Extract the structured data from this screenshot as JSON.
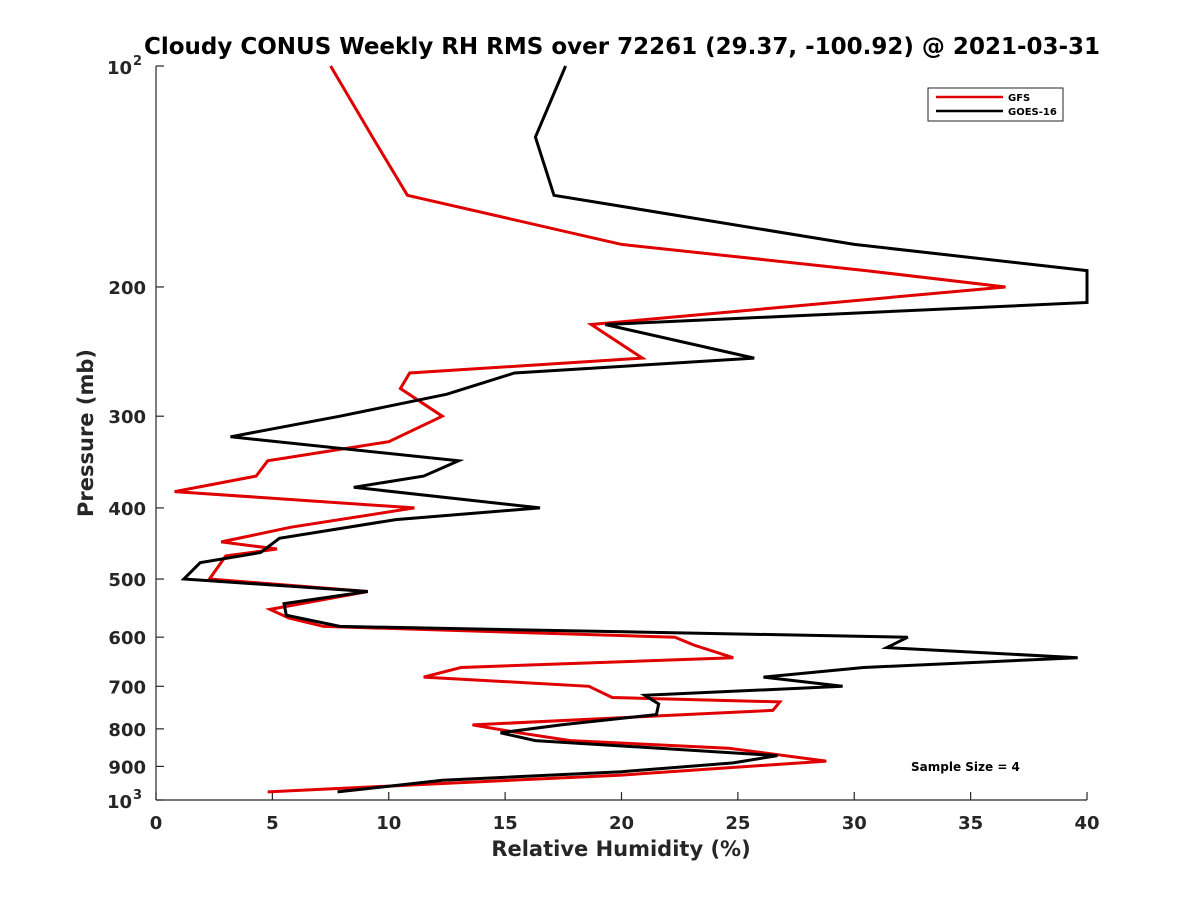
{
  "chart_data": {
    "type": "line",
    "title": "Cloudy CONUS Weekly RH RMS over 72261 (29.37, -100.92) @ 2021-03-31",
    "xlabel": "Relative Humidity (%)",
    "ylabel": "Pressure (mb)",
    "xlim": [
      0,
      40
    ],
    "ylim": [
      100,
      1000
    ],
    "yscale": "log",
    "y_reversed": true,
    "x_ticks": [
      0,
      5,
      10,
      15,
      20,
      25,
      30,
      35,
      40
    ],
    "y_ticks": [
      {
        "value": 100,
        "label": "10",
        "sup": "2"
      },
      {
        "value": 200,
        "label": "200"
      },
      {
        "value": 300,
        "label": "300"
      },
      {
        "value": 400,
        "label": "400"
      },
      {
        "value": 500,
        "label": "500"
      },
      {
        "value": 600,
        "label": "600"
      },
      {
        "value": 700,
        "label": "700"
      },
      {
        "value": 800,
        "label": "800"
      },
      {
        "value": 900,
        "label": "900"
      },
      {
        "value": 1000,
        "label": "10",
        "sup": "3"
      }
    ],
    "grid": false,
    "legend_position": "top-right",
    "annotation": "Sample Size = 4",
    "series": [
      {
        "name": "GFS",
        "color": "#e00000",
        "points": [
          [
            7.5,
            100
          ],
          [
            9.3,
            125
          ],
          [
            10.8,
            150
          ],
          [
            20,
            175
          ],
          [
            30.5,
            190
          ],
          [
            36.5,
            200
          ],
          [
            18.7,
            225
          ],
          [
            20.9,
            250
          ],
          [
            10.9,
            262
          ],
          [
            10.5,
            275
          ],
          [
            12.3,
            300
          ],
          [
            10.0,
            325
          ],
          [
            4.8,
            345
          ],
          [
            4.3,
            362
          ],
          [
            0.8,
            380
          ],
          [
            11.1,
            400
          ],
          [
            5.8,
            425
          ],
          [
            2.8,
            445
          ],
          [
            5.2,
            455
          ],
          [
            3.0,
            465
          ],
          [
            2.3,
            500
          ],
          [
            9.1,
            520
          ],
          [
            4.9,
            550
          ],
          [
            5.7,
            565
          ],
          [
            7.2,
            580
          ],
          [
            22.3,
            600
          ],
          [
            23.1,
            615
          ],
          [
            24.8,
            640
          ],
          [
            13.1,
            660
          ],
          [
            11.5,
            680
          ],
          [
            18.6,
            700
          ],
          [
            19.6,
            725
          ],
          [
            26.8,
            735
          ],
          [
            26.5,
            755
          ],
          [
            13.6,
            790
          ],
          [
            15.6,
            810
          ],
          [
            17.8,
            830
          ],
          [
            24.6,
            850
          ],
          [
            28.8,
            885
          ],
          [
            20.0,
            925
          ],
          [
            12.2,
            950
          ],
          [
            4.8,
            975
          ]
        ]
      },
      {
        "name": "GOES-16",
        "color": "#000000",
        "points": [
          [
            17.6,
            100
          ],
          [
            16.3,
            125
          ],
          [
            17.1,
            150
          ],
          [
            30.0,
            175
          ],
          [
            40.0,
            190
          ],
          [
            40.0,
            210
          ],
          [
            19.3,
            225
          ],
          [
            25.7,
            250
          ],
          [
            15.4,
            262
          ],
          [
            12.5,
            280
          ],
          [
            7.9,
            300
          ],
          [
            3.2,
            320
          ],
          [
            13.0,
            345
          ],
          [
            11.5,
            362
          ],
          [
            8.5,
            375
          ],
          [
            16.5,
            400
          ],
          [
            10.3,
            415
          ],
          [
            5.3,
            440
          ],
          [
            4.5,
            460
          ],
          [
            1.9,
            475
          ],
          [
            1.2,
            500
          ],
          [
            9.1,
            520
          ],
          [
            5.5,
            540
          ],
          [
            5.6,
            560
          ],
          [
            7.9,
            580
          ],
          [
            32.3,
            600
          ],
          [
            31.4,
            620
          ],
          [
            39.6,
            640
          ],
          [
            30.4,
            660
          ],
          [
            26.1,
            680
          ],
          [
            29.5,
            700
          ],
          [
            21.0,
            720
          ],
          [
            21.6,
            740
          ],
          [
            21.5,
            765
          ],
          [
            17.4,
            790
          ],
          [
            14.8,
            810
          ],
          [
            16.3,
            830
          ],
          [
            26.7,
            870
          ],
          [
            24.8,
            890
          ],
          [
            20.0,
            915
          ],
          [
            12.3,
            940
          ],
          [
            7.8,
            975
          ]
        ]
      }
    ]
  }
}
